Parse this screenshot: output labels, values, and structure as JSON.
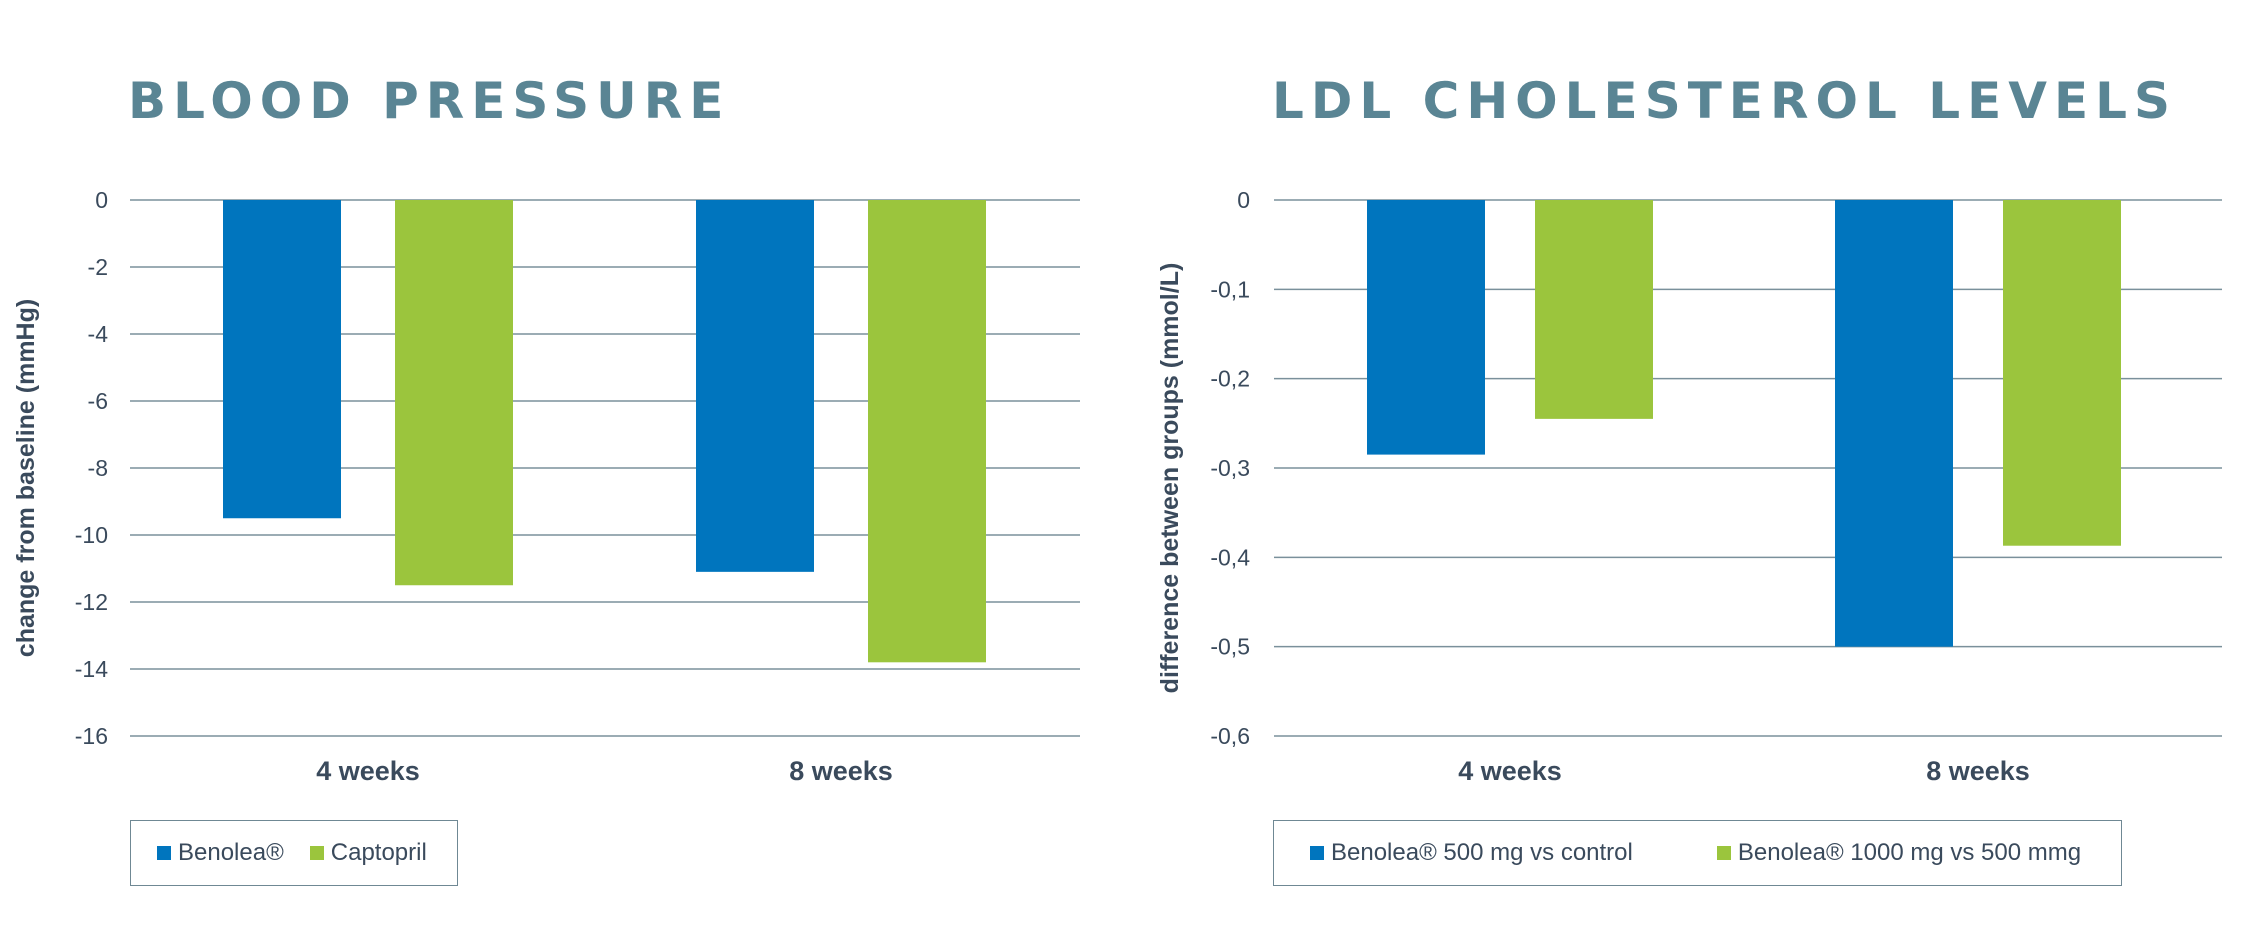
{
  "colors": {
    "blue": "#0075be",
    "green": "#9bc53d",
    "title": "#5a8594"
  },
  "chart_data": [
    {
      "type": "bar",
      "title": "BLOOD PRESSURE",
      "ylabel": "change from baseline (mmHg)",
      "xlabel": "",
      "categories": [
        "4 weeks",
        "8 weeks"
      ],
      "series": [
        {
          "name": "Benolea®",
          "values": [
            -9.5,
            -11.1
          ]
        },
        {
          "name": "Captopril",
          "values": [
            -11.5,
            -13.8
          ]
        }
      ],
      "ylim": [
        -16,
        0
      ],
      "yticks": [
        0,
        -2,
        -4,
        -6,
        -8,
        -10,
        -12,
        -14,
        -16
      ],
      "ytick_labels": [
        "0",
        "-2",
        "-4",
        "-6",
        "-8",
        "-10",
        "-12",
        "-14",
        "-16"
      ],
      "grid": true,
      "legend": "bottom-left"
    },
    {
      "type": "bar",
      "title": "LDL CHOLESTEROL LEVELS",
      "ylabel": "difference between groups (mmol/L)",
      "xlabel": "",
      "categories": [
        "4 weeks",
        "8 weeks"
      ],
      "series": [
        {
          "name": "Benolea® 500 mg vs control",
          "values": [
            -0.285,
            -0.5
          ]
        },
        {
          "name": "Benolea® 1000 mg vs 500 mmg",
          "values": [
            -0.245,
            -0.387
          ]
        }
      ],
      "ylim": [
        -0.6,
        0
      ],
      "yticks": [
        0,
        -0.1,
        -0.2,
        -0.3,
        -0.4,
        -0.5,
        -0.6
      ],
      "ytick_labels": [
        "0",
        "-0,1",
        "-0,2",
        "-0,3",
        "-0,4",
        "-0,5",
        "-0,6"
      ],
      "grid": true,
      "legend": "bottom-left"
    }
  ]
}
